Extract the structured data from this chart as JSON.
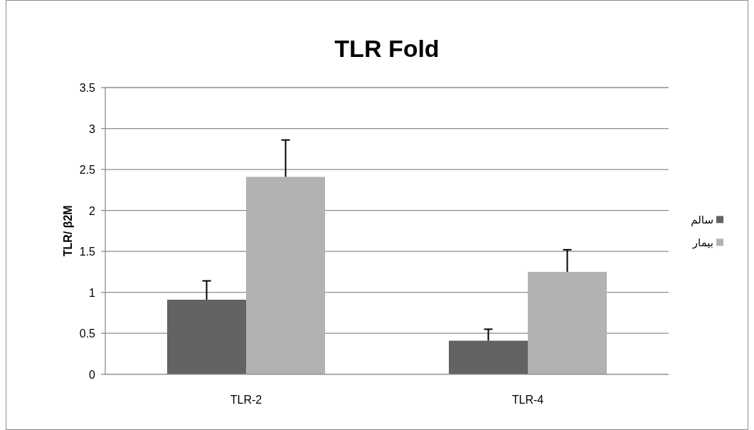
{
  "chart_data": {
    "type": "bar",
    "title": "TLR Fold",
    "ylabel": "TLR/ β2M",
    "categories": [
      "TLR-2",
      "TLR-4"
    ],
    "series": [
      {
        "name": "سالم",
        "color": "#636363",
        "values": [
          0.91,
          0.41
        ],
        "errors": [
          [
            0.91,
            1.14
          ],
          [
            0.41,
            0.55
          ]
        ]
      },
      {
        "name": "بیمار",
        "color": "#b2b2b2",
        "values": [
          2.41,
          1.25
        ],
        "errors": [
          [
            2.41,
            2.86
          ],
          [
            1.25,
            1.52
          ]
        ]
      }
    ],
    "ylim": [
      0,
      3.5
    ],
    "yticks": [
      0,
      0.5,
      1,
      1.5,
      2,
      2.5,
      3,
      3.5
    ],
    "grid": "y",
    "legend": "right"
  }
}
